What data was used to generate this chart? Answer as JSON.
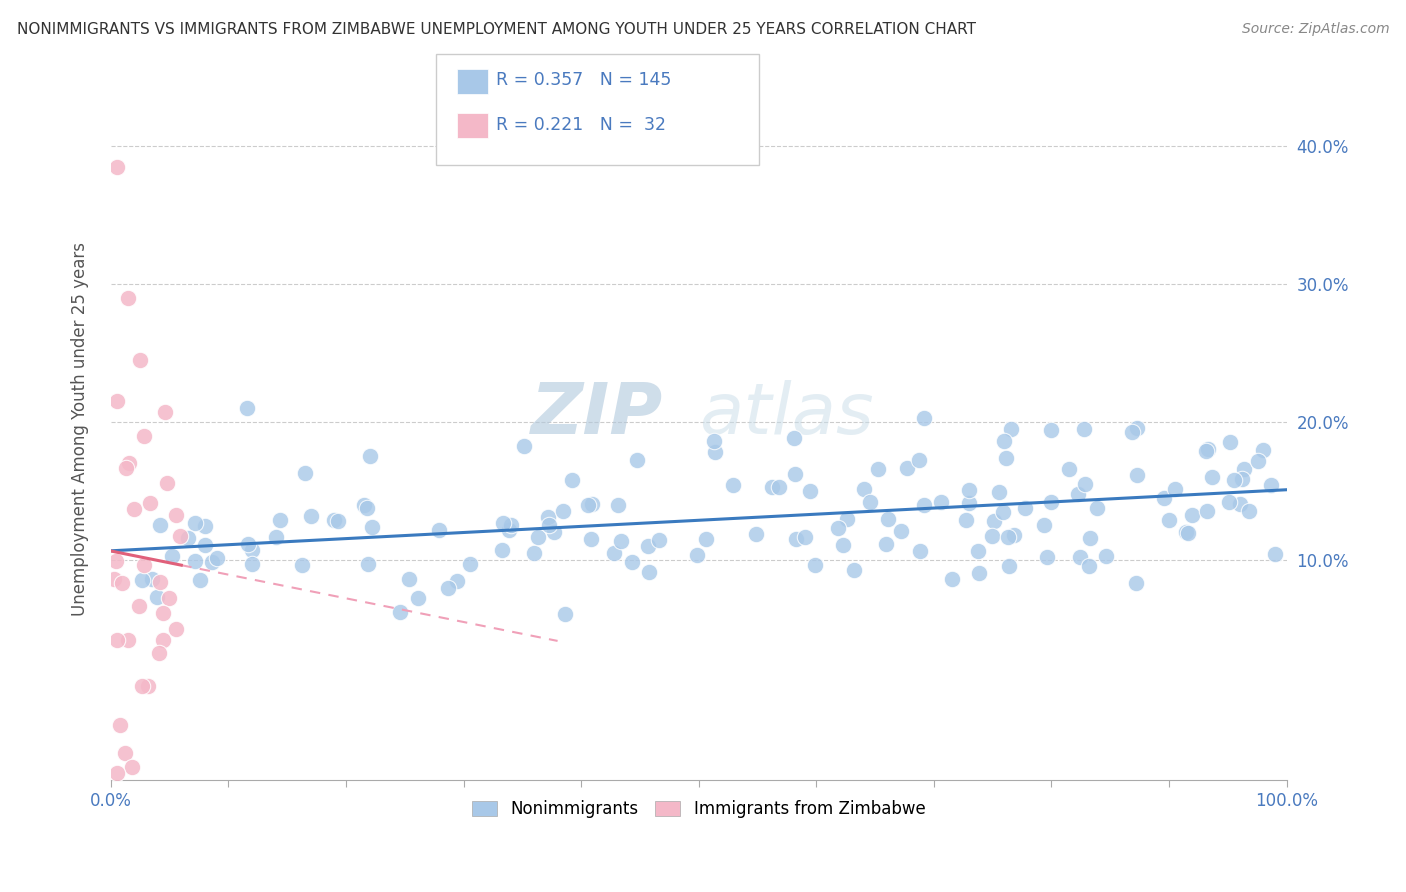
{
  "title": "NONIMMIGRANTS VS IMMIGRANTS FROM ZIMBABWE UNEMPLOYMENT AMONG YOUTH UNDER 25 YEARS CORRELATION CHART",
  "source": "Source: ZipAtlas.com",
  "ylabel": "Unemployment Among Youth under 25 years",
  "xlim": [
    0,
    1.0
  ],
  "ylim": [
    -0.06,
    0.45
  ],
  "legend_labels": [
    "Nonimmigrants",
    "Immigrants from Zimbabwe"
  ],
  "nonimmigrant_color": "#a8c8e8",
  "immigrant_color": "#f4b8c8",
  "line_nonimmigrant_color": "#3a7abf",
  "line_immigrant_solid_color": "#e0607a",
  "line_immigrant_dash_color": "#f0a0b8",
  "R_nonimmigrant": 0.357,
  "N_nonimmigrant": 145,
  "R_immigrant": 0.221,
  "N_immigrant": 32,
  "watermark_zip": "ZIP",
  "watermark_atlas": "atlas",
  "background_color": "#ffffff",
  "grid_color": "#cccccc",
  "title_color": "#333333",
  "axis_label_color": "#4a7abf",
  "legend_R_color": "#4a7abf",
  "seed": 42
}
